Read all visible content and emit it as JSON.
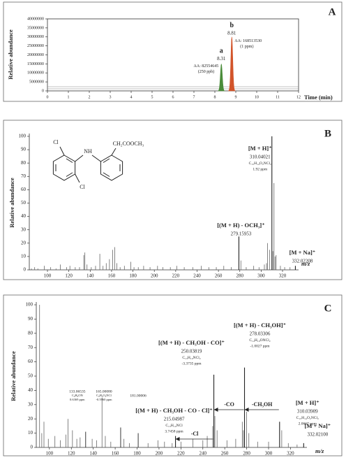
{
  "chart_data": [
    {
      "type": "chromatogram",
      "panel": "A",
      "ylabel": "Relative abundance",
      "xlabel": "Time (min)",
      "xlim": [
        0,
        12
      ],
      "xticks": [
        0,
        1,
        2,
        3,
        4,
        5,
        6,
        7,
        8,
        9,
        10,
        11,
        12
      ],
      "ylim": [
        0,
        40000000
      ],
      "yticks": [
        0,
        5000000,
        10000000,
        15000000,
        20000000,
        25000000,
        30000000,
        35000000,
        40000000
      ],
      "peaks": [
        {
          "label": "a",
          "rt": 8.31,
          "height": 15000000,
          "area": "AA: 82554645",
          "amount": "(250 ppb)",
          "color": "#4a8c3a"
        },
        {
          "label": "b",
          "rt": 8.81,
          "height": 30000000,
          "area": "AA: 168513530",
          "amount": "(1 ppm)",
          "color": "#d2542a"
        }
      ]
    },
    {
      "type": "spectrum",
      "panel": "B",
      "ylabel": "Relative abundance",
      "xlabel": "m/z",
      "xlim": [
        83,
        335
      ],
      "xticks": [
        100,
        120,
        140,
        160,
        180,
        200,
        220,
        240,
        260,
        280,
        300,
        320
      ],
      "ylim": [
        0,
        100
      ],
      "yticks": [
        0,
        10,
        20,
        30,
        40,
        50,
        60,
        70,
        80,
        90,
        100
      ],
      "structure": [
        "Cl",
        "NH",
        "CH₂COOCH₃",
        "Cl"
      ],
      "mz": [
        85,
        88,
        91,
        97,
        103,
        108,
        112,
        118,
        121,
        126,
        130,
        134,
        135,
        137,
        141,
        145,
        149,
        152,
        155,
        158,
        161,
        163,
        165,
        168,
        172,
        178,
        181,
        185,
        190,
        196,
        203,
        208,
        215,
        221,
        228,
        236,
        244,
        251,
        258,
        265,
        272,
        281,
        286,
        293,
        298,
        303,
        305,
        306,
        308,
        311,
        312,
        313,
        314,
        318,
        322,
        327
      ],
      "values": [
        1,
        2,
        1,
        3,
        2,
        1,
        4,
        2,
        3,
        2,
        2,
        11,
        13,
        4,
        2,
        3,
        12,
        3,
        5,
        8,
        15,
        17,
        5,
        2,
        3,
        6,
        2,
        2,
        3,
        2,
        3,
        2,
        2,
        3,
        2,
        2,
        3,
        2,
        2,
        3,
        2,
        7,
        2,
        3,
        2,
        4,
        5,
        20,
        15,
        14,
        65,
        10,
        11,
        3,
        2,
        2
      ],
      "labeled_peaks": [
        {
          "ion": "[M + H]⁺",
          "mz": 310.04021,
          "mz_label": "310.04021",
          "value": 100,
          "formula": "C₁₅H₁₄O₂NCl₂",
          "error": "1.92 ppm"
        },
        {
          "ion": "[(M + H) - OCH₃]⁺",
          "mz": 279.15953,
          "mz_label": "279.15953",
          "value": 25
        },
        {
          "ion": "[M + Na]⁺",
          "mz": 332.02208,
          "mz_label": "332.02208",
          "value": 3
        }
      ]
    },
    {
      "type": "spectrum",
      "panel": "C",
      "ylabel": "Relative abundance",
      "xlabel": "m/z",
      "xlim": [
        88,
        335
      ],
      "xticks": [
        100,
        120,
        140,
        160,
        180,
        200,
        220,
        240,
        260,
        280,
        300,
        320
      ],
      "ylim": [
        0,
        100
      ],
      "yticks": [
        0,
        10,
        20,
        30,
        40,
        50,
        60,
        70,
        80,
        90,
        100
      ],
      "mz": [
        91,
        93,
        95,
        99,
        105,
        110,
        115,
        117,
        121,
        125,
        128,
        139,
        143,
        148,
        151,
        156,
        168,
        173,
        190,
        199,
        205,
        212,
        220,
        231,
        240,
        244,
        249,
        251,
        253,
        262,
        270,
        276,
        277,
        280,
        282,
        290,
        300,
        312,
        318,
        326
      ],
      "values": [
        100,
        10,
        18,
        6,
        8,
        5,
        9,
        20,
        12,
        6,
        7,
        6,
        5,
        35,
        8,
        4,
        6,
        3,
        3,
        5,
        4,
        3,
        4,
        6,
        5,
        8,
        15,
        22,
        12,
        5,
        6,
        18,
        12,
        25,
        10,
        4,
        4,
        12,
        3,
        2
      ],
      "labeled_peaks": [
        {
          "ion": "[(M + H) - CH₃OH]⁺",
          "mz": 278.03306,
          "mz_label": "278.03306",
          "value": 56,
          "formula": "C₁₄H₁₀ONCl₂",
          "error": "-1.0027 ppm"
        },
        {
          "ion": "[(M + H) - CH₃OH - CO]⁺",
          "mz": 250.03819,
          "mz_label": "250.03819",
          "value": 51,
          "formula": "C₁₃H₁₀NCl₂",
          "error": "-3.3735 ppm"
        },
        {
          "ion": "[(M + H) - CH₃OH - CO - Cl]⁺",
          "mz": 215.04987,
          "mz_label": "215.04987",
          "value": 8,
          "formula": "C₁₃H₁₀NCl",
          "error": "3.7458 ppm"
        },
        {
          "ion": "[M + H]⁺",
          "mz": 310.03909,
          "mz_label": "310.03909",
          "value": 18,
          "formula": "C₁₅H₁₄O₂NCl₂",
          "error": "2.0667 ppm"
        },
        {
          "ion": "[M + Na]⁺",
          "mz": 332.021,
          "mz_label": "332.02100",
          "value": 3
        }
      ],
      "minor_peaks": [
        {
          "mz": 133.06535,
          "mz_label": "133.06535",
          "value": 11,
          "formula": "C₉H₉ON",
          "error": "0.6369 ppm"
        },
        {
          "mz": 165.0008,
          "mz_label": "165.00080",
          "value": 14,
          "formula": "C₈H₆O₂NCl",
          "error": "-0.5960 ppm"
        },
        {
          "mz": 181.00006,
          "mz_label": "181.00006",
          "value": 10
        }
      ],
      "losses": [
        "-CO",
        "-CH₃OH",
        "-Cl"
      ]
    }
  ]
}
